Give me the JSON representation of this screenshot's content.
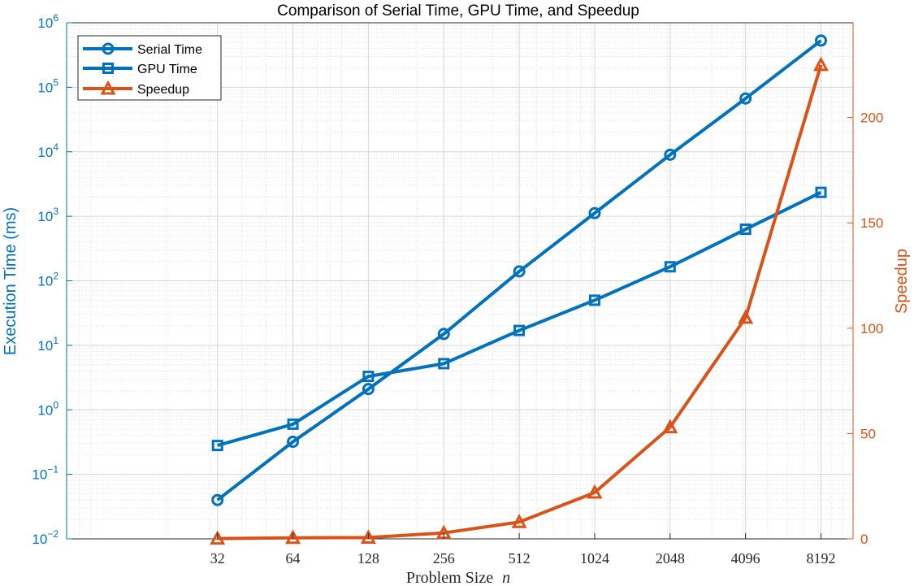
{
  "chart_data": {
    "type": "line",
    "title": "Comparison of Serial Time, GPU Time, and Speedup",
    "xlabel": "Problem Size",
    "xlabel_var": "n",
    "ylabel_left": "Execution Time (ms)",
    "ylabel_right": "Speedup",
    "x": [
      32,
      64,
      128,
      256,
      512,
      1024,
      2048,
      4096,
      8192
    ],
    "x_scale": "log2",
    "xlim": [
      8,
      11000
    ],
    "x_tick_labels": [
      "32",
      "64",
      "128",
      "256",
      "512",
      "1024",
      "2048",
      "4096",
      "8192"
    ],
    "ylim_left": [
      0.01,
      1000000
    ],
    "y_left_scale": "log",
    "y_left_tick_exponents": [
      "−2",
      "−1",
      "0",
      "1",
      "2",
      "3",
      "4",
      "5",
      "6"
    ],
    "ylim_right": [
      0,
      245
    ],
    "y_right_ticks": [
      0,
      50,
      100,
      150,
      200
    ],
    "y_right_tick_labels": [
      "0",
      "50",
      "100",
      "150",
      "200"
    ],
    "grid": true,
    "legend_position": "top-left",
    "series": [
      {
        "name": "Serial Time",
        "axis": "left",
        "marker": "circle",
        "color": "#0072BD",
        "values": [
          0.04,
          0.32,
          2.1,
          15,
          140,
          1120,
          9000,
          67000,
          530000
        ]
      },
      {
        "name": "GPU Time",
        "axis": "left",
        "marker": "square",
        "color": "#0072BD",
        "values": [
          0.28,
          0.6,
          3.3,
          5.2,
          17,
          50,
          165,
          630,
          2350
        ]
      },
      {
        "name": "Speedup",
        "axis": "right",
        "marker": "triangle",
        "color": "#D95319",
        "values": [
          0.15,
          0.5,
          0.6,
          2.8,
          8,
          22,
          53,
          105,
          225
        ]
      }
    ]
  }
}
